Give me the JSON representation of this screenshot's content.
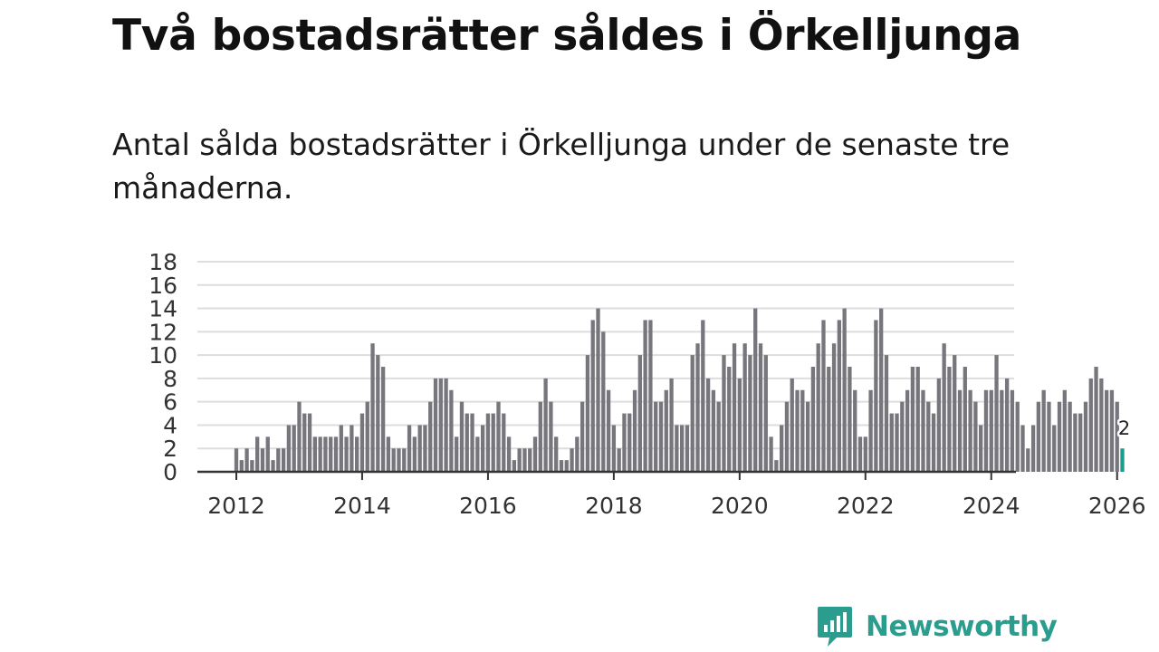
{
  "header": {
    "title": "Två bostadsrätter såldes i Örkelljunga",
    "subtitle": "Antal sålda bostadsrätter i Örkelljunga under de senaste tre månaderna."
  },
  "brand": {
    "name": "Newsworthy",
    "color": "#2a9d8f"
  },
  "colors": {
    "bar": "#77767c",
    "highlight": "#1a9c8e",
    "grid": "#dddddd",
    "axis": "#333333"
  },
  "chart_data": {
    "type": "bar",
    "title": "Antal sålda bostadsrätter i Örkelljunga",
    "xlabel": "",
    "ylabel": "",
    "ylim": [
      0,
      18
    ],
    "yticks": [
      "0",
      "2",
      "4",
      "6",
      "8",
      "10",
      "12",
      "14",
      "16",
      "18"
    ],
    "xticks": [
      "2012",
      "2014",
      "2016",
      "2018",
      "2020",
      "2022",
      "2024",
      "2026"
    ],
    "x_start": "2012-01",
    "frequency": "monthly",
    "values": [
      2,
      1,
      2,
      1,
      3,
      2,
      3,
      1,
      2,
      2,
      4,
      4,
      6,
      5,
      5,
      3,
      3,
      3,
      3,
      3,
      4,
      3,
      4,
      3,
      5,
      6,
      11,
      10,
      9,
      3,
      2,
      2,
      2,
      4,
      3,
      4,
      4,
      6,
      8,
      8,
      8,
      7,
      3,
      6,
      5,
      5,
      3,
      4,
      5,
      5,
      6,
      5,
      3,
      1,
      2,
      2,
      2,
      3,
      6,
      8,
      6,
      3,
      1,
      1,
      2,
      3,
      6,
      10,
      13,
      14,
      12,
      7,
      4,
      2,
      5,
      5,
      7,
      10,
      13,
      13,
      6,
      6,
      7,
      8,
      4,
      4,
      4,
      10,
      11,
      13,
      8,
      7,
      6,
      10,
      9,
      11,
      8,
      11,
      10,
      14,
      11,
      10,
      3,
      1,
      4,
      6,
      8,
      7,
      7,
      6,
      9,
      11,
      13,
      9,
      11,
      13,
      14,
      9,
      7,
      3,
      3,
      7,
      13,
      14,
      10,
      5,
      5,
      6,
      7,
      9,
      9,
      7,
      6,
      5,
      8,
      11,
      9,
      10,
      7,
      9,
      7,
      6,
      4,
      7,
      7,
      10,
      7,
      8,
      7,
      6,
      4,
      2,
      4,
      6,
      7,
      6,
      4,
      6,
      7,
      6,
      5,
      5,
      6,
      8,
      9,
      8,
      7,
      7,
      6,
      2
    ],
    "highlight": {
      "label": "2026-02",
      "value": 2,
      "data_label": "2"
    }
  }
}
